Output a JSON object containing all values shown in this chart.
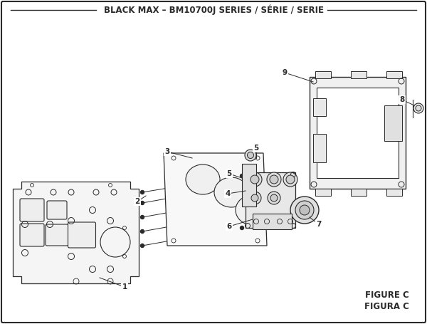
{
  "title": "BLACK MAX – BM10700J SERIES / SÉRIE / SERIE",
  "figure_label_1": "FIGURE C",
  "figure_label_2": "FIGURA C",
  "bg_color": "#ffffff",
  "lc": "#2a2a2a",
  "title_fontsize": 8.5,
  "label_fontsize": 8.5,
  "part_label_fontsize": 7.5
}
